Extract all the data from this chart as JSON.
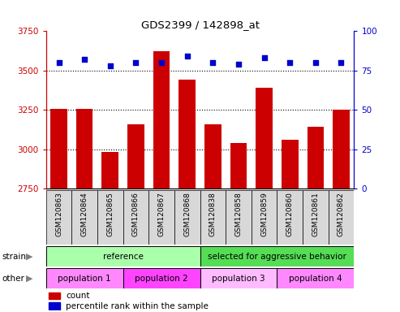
{
  "title": "GDS2399 / 142898_at",
  "samples": [
    "GSM120863",
    "GSM120864",
    "GSM120865",
    "GSM120866",
    "GSM120867",
    "GSM120868",
    "GSM120838",
    "GSM120858",
    "GSM120859",
    "GSM120860",
    "GSM120861",
    "GSM120862"
  ],
  "counts": [
    3255,
    3258,
    2985,
    3160,
    3625,
    3445,
    3160,
    3040,
    3390,
    3060,
    3145,
    3250
  ],
  "percentiles": [
    80,
    82,
    78,
    80,
    80,
    84,
    80,
    79,
    83,
    80,
    80,
    80
  ],
  "ymin": 2750,
  "ymax": 3750,
  "yticks": [
    2750,
    3000,
    3250,
    3500,
    3750
  ],
  "y2min": 0,
  "y2max": 100,
  "y2ticks": [
    0,
    25,
    50,
    75,
    100
  ],
  "bar_color": "#cc0000",
  "dot_color": "#0000cc",
  "strain_ref_color": "#aaffaa",
  "strain_agg_color": "#55dd55",
  "other_color": "#ff88ff",
  "other_color2": "#ffbbff",
  "bg_color": "#d8d8d8",
  "grid_color": "#000000",
  "axis_left_color": "#cc0000",
  "axis_right_color": "#0000cc",
  "strain_ref_samples": 6,
  "strain_agg_samples": 6,
  "pop_sizes": [
    3,
    3,
    3,
    3
  ],
  "pop_labels": [
    "population 1",
    "population 2",
    "population 3",
    "population 4"
  ],
  "pop_colors": [
    "#ff88ff",
    "#ff44ff",
    "#ffbbff",
    "#ff88ff"
  ]
}
